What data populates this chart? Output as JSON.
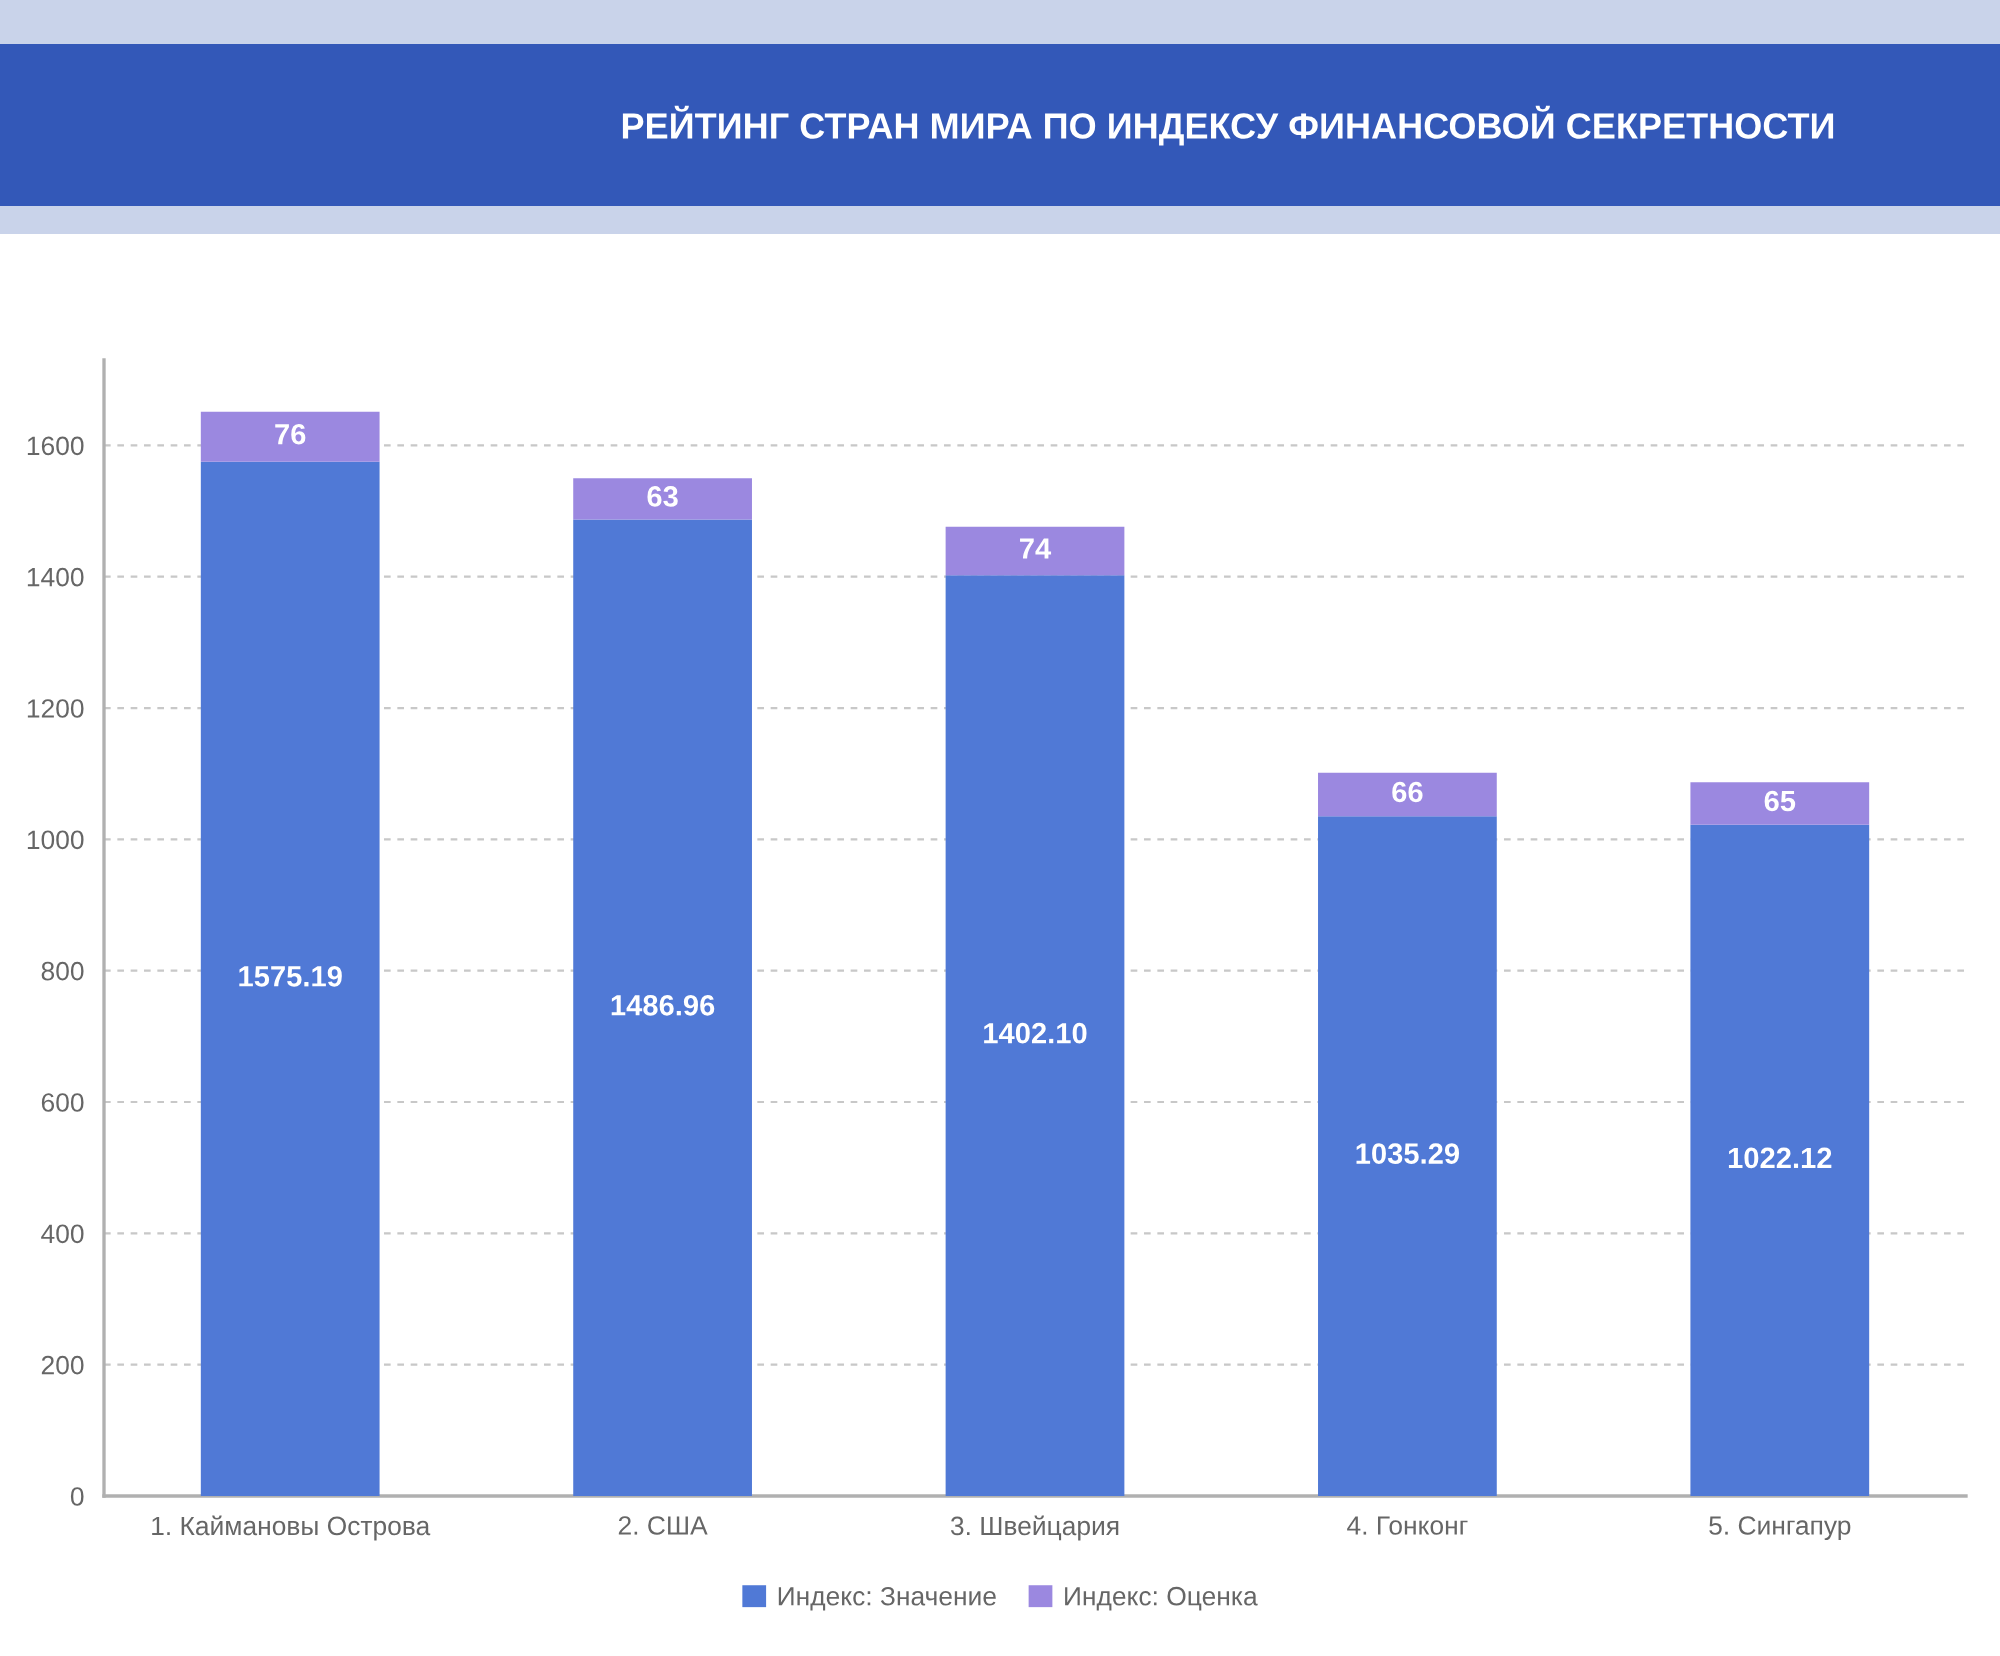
{
  "chart_data": {
    "type": "bar",
    "title": "РЕЙТИНГ СТРАН МИРА ПО ИНДЕКСУ ФИНАНСОВОЙ СЕКРЕТНОСТИ",
    "categories": [
      "1. Каймановы Острова",
      "2. США",
      "3. Швейцария",
      "4. Гонконг",
      "5. Сингапур"
    ],
    "stacked": true,
    "series": [
      {
        "name": "Индекс: Значение",
        "color": "#5079d6",
        "values": [
          1575.19,
          1486.96,
          1402.1,
          1035.29,
          1022.12
        ],
        "value_labels": [
          "1575.19",
          "1486.96",
          "1402.10",
          "1035.29",
          "1022.12"
        ]
      },
      {
        "name": "Индекс: Оценка",
        "color": "#9b88e0",
        "values": [
          76,
          63,
          74,
          66,
          65
        ],
        "value_labels": [
          "76",
          "63",
          "74",
          "66",
          "65"
        ]
      }
    ],
    "ylim": [
      0,
      1730
    ],
    "yticks": [
      0,
      200,
      400,
      600,
      800,
      1000,
      1200,
      1400,
      1600
    ],
    "grid": "y",
    "legend": "bottom"
  }
}
